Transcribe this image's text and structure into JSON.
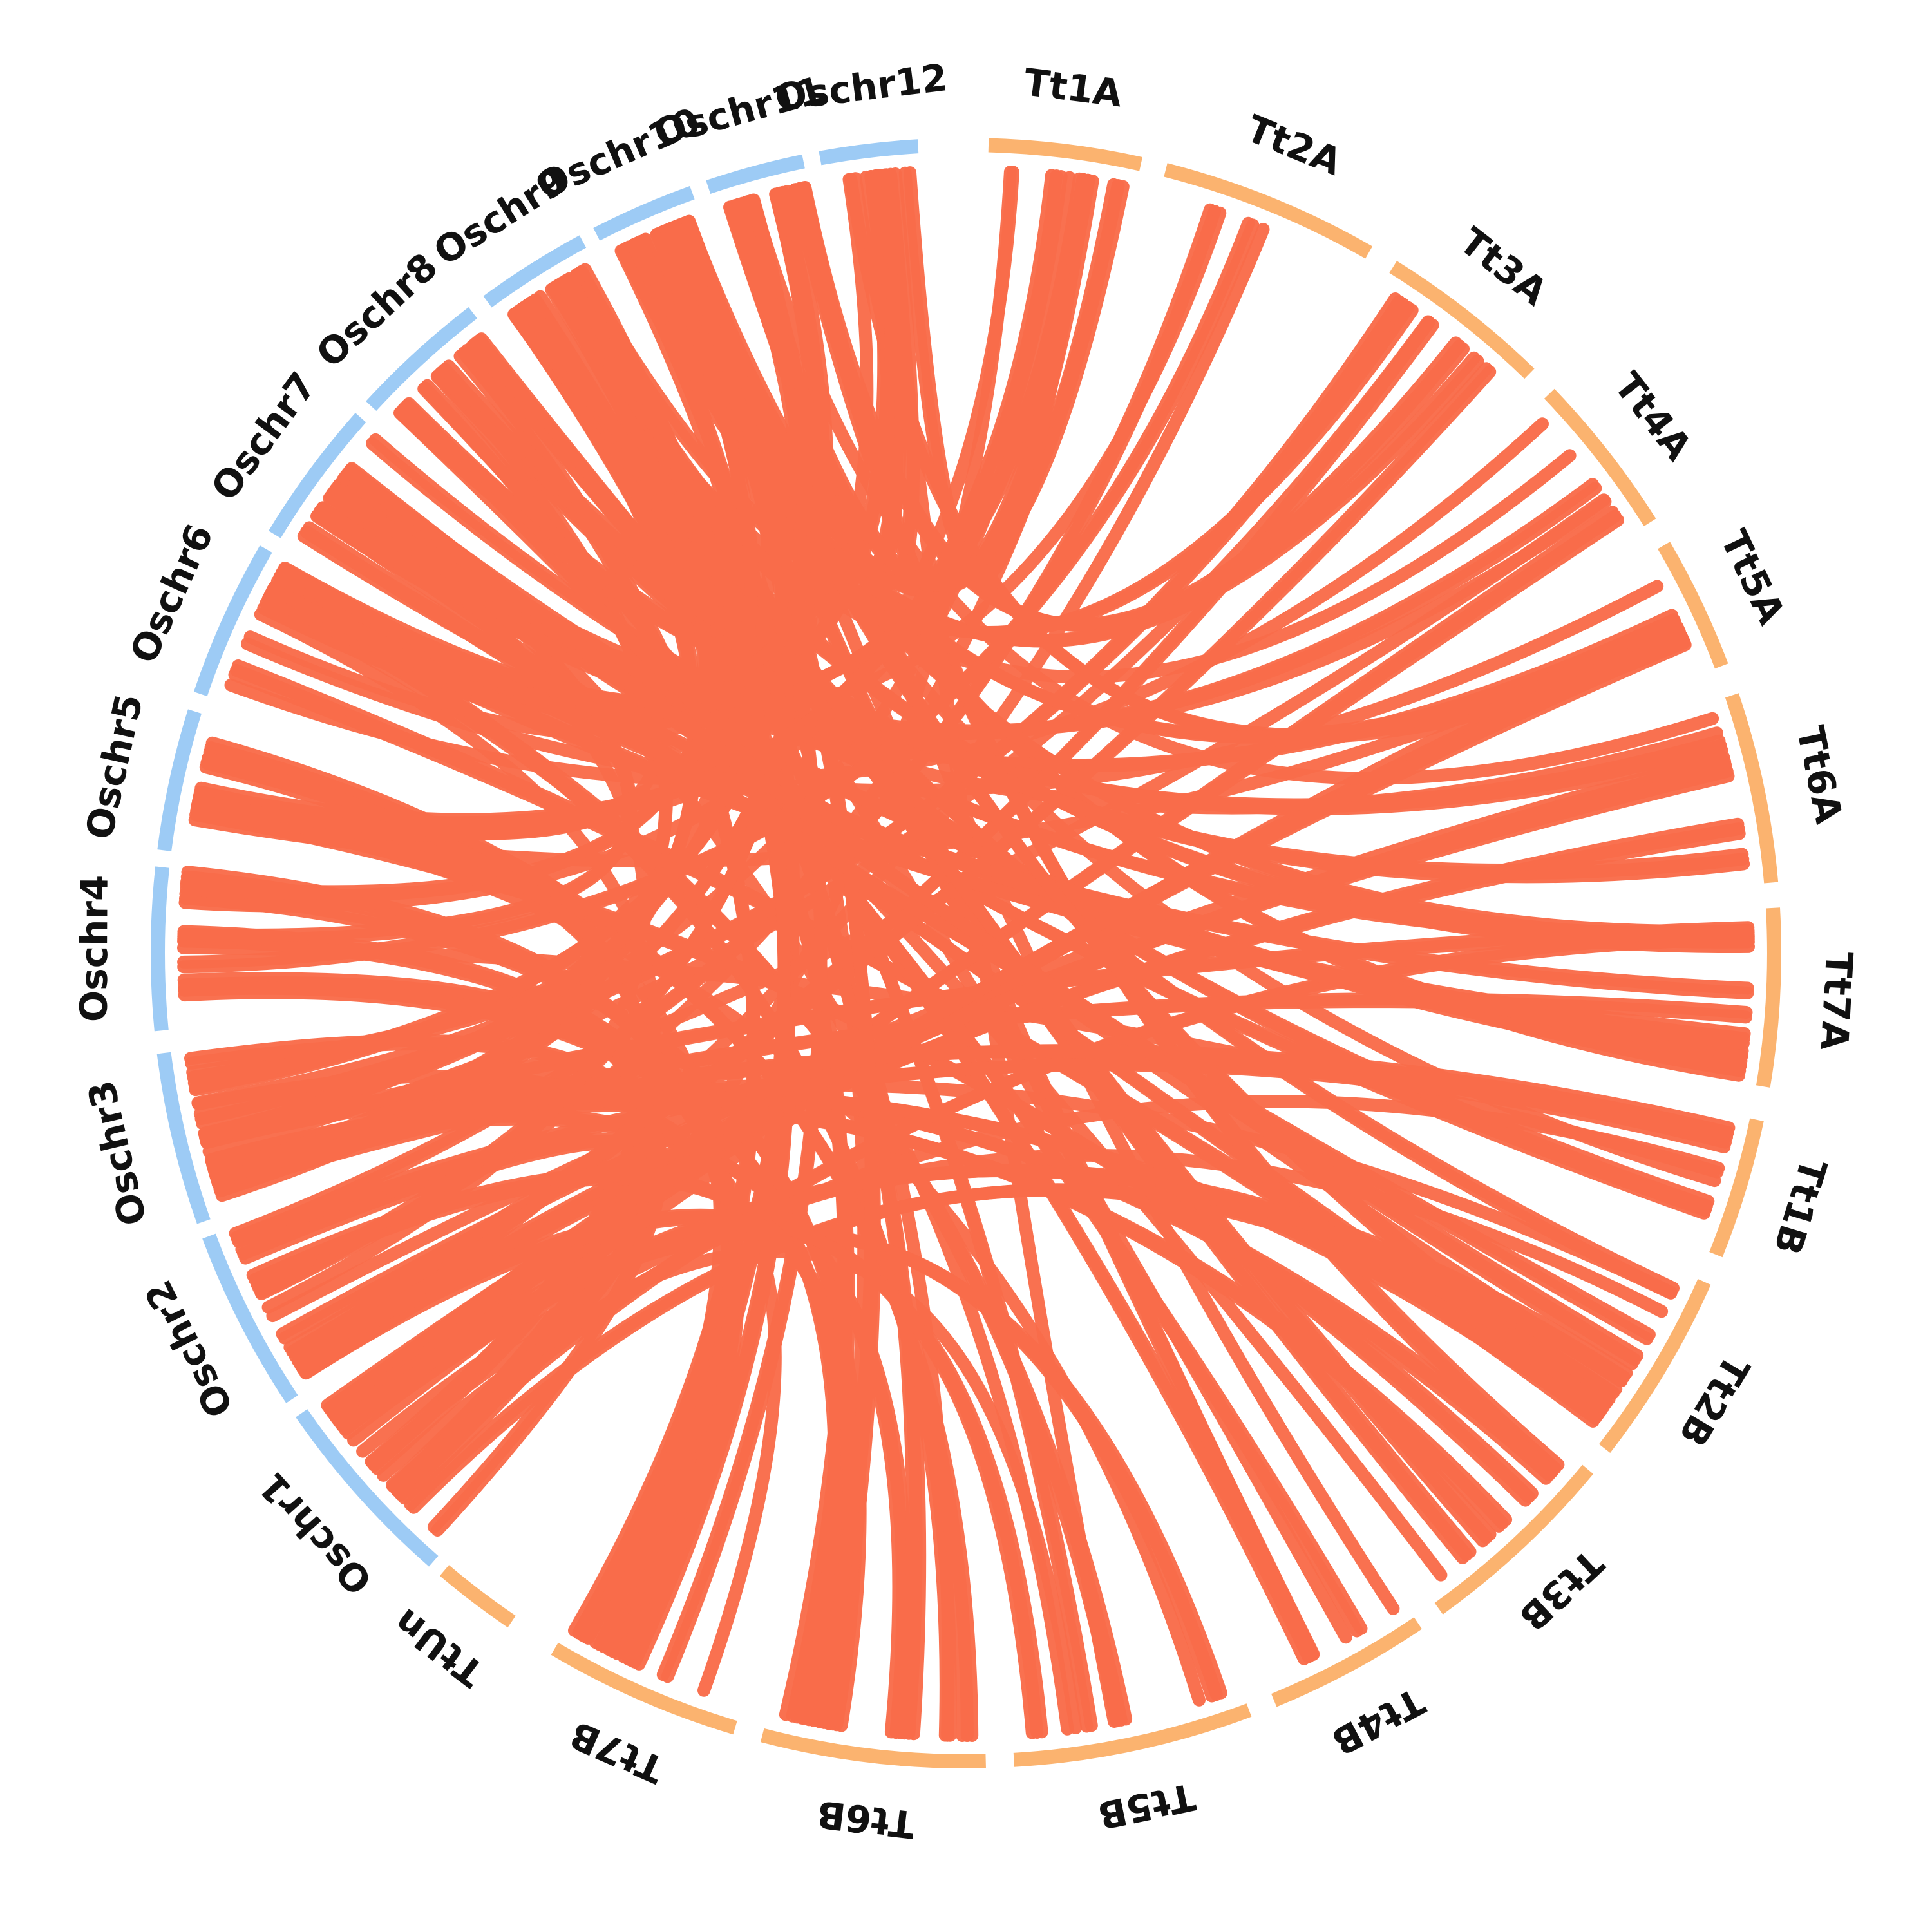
{
  "colors": {
    "rice_chromosome": "#9DCBF5",
    "triticum_chromosome": "#FBB36F",
    "link": "#F96C4A"
  },
  "chromosomes": [
    {
      "id": "TtUn",
      "label": "TtUn",
      "group": "triticum"
    },
    {
      "id": "Oschr1",
      "label": "Oschr1",
      "group": "rice"
    },
    {
      "id": "Oschr2",
      "label": "Oschr2",
      "group": "rice"
    },
    {
      "id": "Oschr3",
      "label": "Oschr3",
      "group": "rice"
    },
    {
      "id": "Oschr4",
      "label": "Oschr4",
      "group": "rice"
    },
    {
      "id": "Oschr5",
      "label": "Oschr5",
      "group": "rice"
    },
    {
      "id": "Oschr6",
      "label": "Oschr6",
      "group": "rice"
    },
    {
      "id": "Oschr7",
      "label": "Oschr7",
      "group": "rice"
    },
    {
      "id": "Oschr8",
      "label": "Oschr8",
      "group": "rice"
    },
    {
      "id": "Oschr9",
      "label": "Oschr9",
      "group": "rice"
    },
    {
      "id": "Oschr10",
      "label": "Oschr10",
      "group": "rice"
    },
    {
      "id": "Oschr11",
      "label": "Oschr11",
      "group": "rice"
    },
    {
      "id": "Oschr12",
      "label": "Oschr12",
      "group": "rice"
    },
    {
      "id": "Tt1A",
      "label": "Tt1A",
      "group": "triticum"
    },
    {
      "id": "Tt2A",
      "label": "Tt2A",
      "group": "triticum"
    },
    {
      "id": "Tt3A",
      "label": "Tt3A",
      "group": "triticum"
    },
    {
      "id": "Tt4A",
      "label": "Tt4A",
      "group": "triticum"
    },
    {
      "id": "Tt5A",
      "label": "Tt5A",
      "group": "triticum"
    },
    {
      "id": "Tt6A",
      "label": "Tt6A",
      "group": "triticum"
    },
    {
      "id": "Tt7A",
      "label": "Tt7A",
      "group": "triticum"
    },
    {
      "id": "Tt1B",
      "label": "Tt1B",
      "group": "triticum"
    },
    {
      "id": "Tt2B",
      "label": "Tt2B",
      "group": "triticum"
    },
    {
      "id": "Tt3B",
      "label": "Tt3B",
      "group": "triticum"
    },
    {
      "id": "Tt4B",
      "label": "Tt4B",
      "group": "triticum"
    },
    {
      "id": "Tt5B",
      "label": "Tt5B",
      "group": "triticum"
    },
    {
      "id": "Tt6B",
      "label": "Tt6B",
      "group": "triticum"
    },
    {
      "id": "Tt7B",
      "label": "Tt7B",
      "group": "triticum"
    }
  ]
}
